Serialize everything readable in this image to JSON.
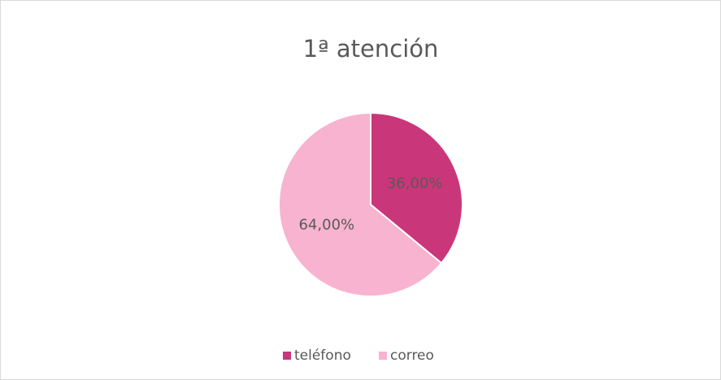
{
  "chart_data": {
    "type": "pie",
    "title": "1ª atención",
    "categories": [
      "teléfono",
      "correo"
    ],
    "values": [
      36,
      64
    ],
    "value_labels": [
      "36,00%",
      "64,00%"
    ],
    "colors": [
      "#c9377a",
      "#f7b3cf"
    ],
    "legend": "bottom"
  }
}
